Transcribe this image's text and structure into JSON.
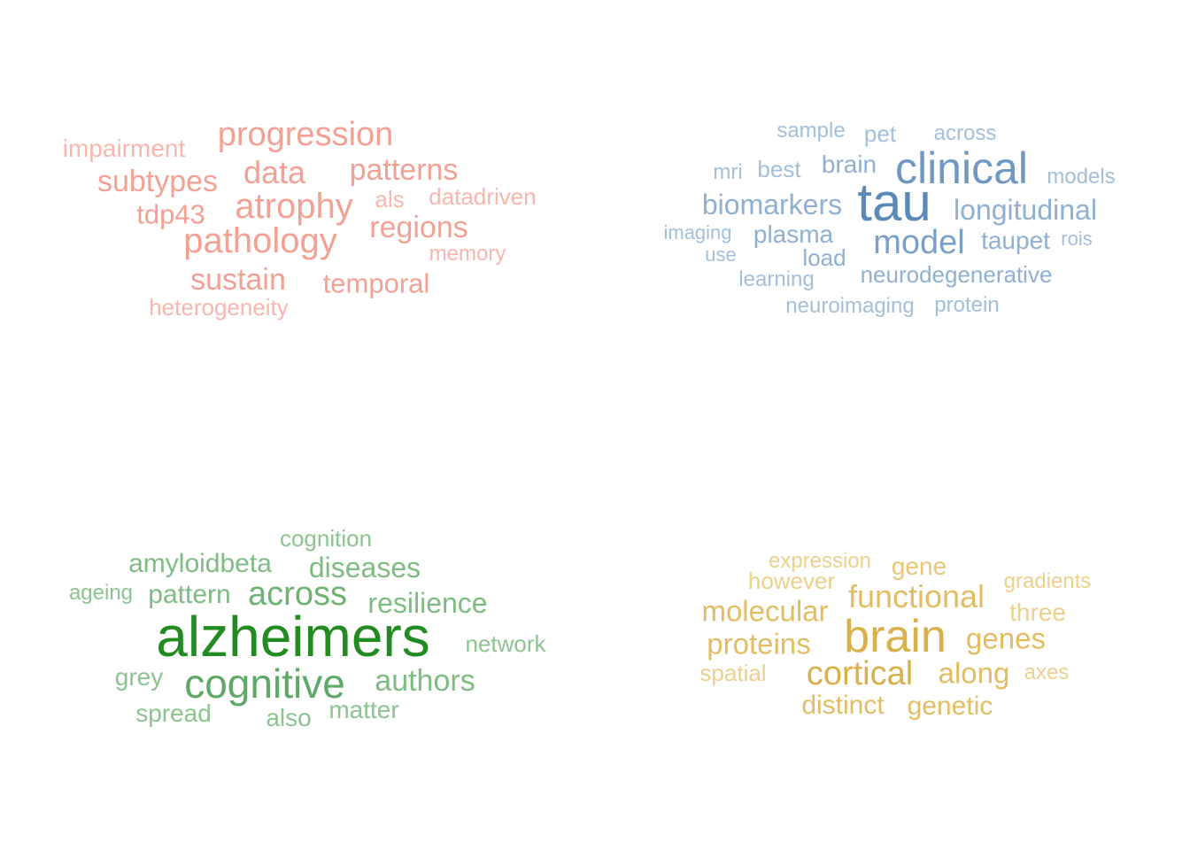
{
  "clouds": [
    {
      "words": [
        {
          "text": "progression",
          "color": "#f4a195",
          "weight": 0.7
        },
        {
          "text": "impairment",
          "color": "#f7b7ad",
          "weight": 0.35
        },
        {
          "text": "subtypes",
          "color": "#f4a195",
          "weight": 0.62
        },
        {
          "text": "data",
          "color": "#f4a195",
          "weight": 0.72
        },
        {
          "text": "patterns",
          "color": "#f4a195",
          "weight": 0.68
        },
        {
          "text": "tdp43",
          "color": "#f4a195",
          "weight": 0.56
        },
        {
          "text": "atrophy",
          "color": "#f4a195",
          "weight": 0.88
        },
        {
          "text": "als",
          "color": "#f7b7ad",
          "weight": 0.45
        },
        {
          "text": "datadriven",
          "color": "#f7b7ad",
          "weight": 0.45
        },
        {
          "text": "pathology",
          "color": "#f4a195",
          "weight": 0.92
        },
        {
          "text": "regions",
          "color": "#f4a195",
          "weight": 0.66
        },
        {
          "text": "memory",
          "color": "#f7b7ad",
          "weight": 0.4
        },
        {
          "text": "sustain",
          "color": "#f4a195",
          "weight": 0.66
        },
        {
          "text": "temporal",
          "color": "#f4a195",
          "weight": 0.62
        },
        {
          "text": "heterogeneity",
          "color": "#f7b7ad",
          "weight": 0.42
        }
      ]
    },
    {
      "words": [
        {
          "text": "sample",
          "color": "#a3bfd9",
          "weight": 0.38
        },
        {
          "text": "pet",
          "color": "#a3bfd9",
          "weight": 0.4
        },
        {
          "text": "across",
          "color": "#a3bfd9",
          "weight": 0.36
        },
        {
          "text": "mri",
          "color": "#a3bfd9",
          "weight": 0.34
        },
        {
          "text": "best",
          "color": "#a3bfd9",
          "weight": 0.42
        },
        {
          "text": "brain",
          "color": "#8fb0d0",
          "weight": 0.46
        },
        {
          "text": "clinical",
          "color": "#6f98c2",
          "weight": 0.9
        },
        {
          "text": "models",
          "color": "#a3bfd9",
          "weight": 0.34
        },
        {
          "text": "biomarkers",
          "color": "#8fb0d0",
          "weight": 0.58
        },
        {
          "text": "tau",
          "color": "#5b8ab9",
          "weight": 1.0
        },
        {
          "text": "longitudinal",
          "color": "#8fb0d0",
          "weight": 0.6
        },
        {
          "text": "imaging",
          "color": "#a3bfd9",
          "weight": 0.34
        },
        {
          "text": "plasma",
          "color": "#8fb0d0",
          "weight": 0.52
        },
        {
          "text": "model",
          "color": "#7aa0c8",
          "weight": 0.76
        },
        {
          "text": "taupet",
          "color": "#8fb0d0",
          "weight": 0.48
        },
        {
          "text": "rois",
          "color": "#a3bfd9",
          "weight": 0.34
        },
        {
          "text": "use",
          "color": "#a3bfd9",
          "weight": 0.34
        },
        {
          "text": "load",
          "color": "#8fb0d0",
          "weight": 0.46
        },
        {
          "text": "learning",
          "color": "#a3bfd9",
          "weight": 0.36
        },
        {
          "text": "neurodegenerative",
          "color": "#8fb0d0",
          "weight": 0.46
        },
        {
          "text": "neuroimaging",
          "color": "#a3bfd9",
          "weight": 0.38
        },
        {
          "text": "protein",
          "color": "#a3bfd9",
          "weight": 0.38
        }
      ]
    },
    {
      "words": [
        {
          "text": "cognition",
          "color": "#8cc490",
          "weight": 0.38
        },
        {
          "text": "amyloidbeta",
          "color": "#7fbc83",
          "weight": 0.5
        },
        {
          "text": "diseases",
          "color": "#7fbc83",
          "weight": 0.54
        },
        {
          "text": "ageing",
          "color": "#8cc490",
          "weight": 0.4
        },
        {
          "text": "pattern",
          "color": "#7fbc83",
          "weight": 0.52
        },
        {
          "text": "across",
          "color": "#6db373",
          "weight": 0.68
        },
        {
          "text": "resilience",
          "color": "#7fbc83",
          "weight": 0.56
        },
        {
          "text": "alzheimers",
          "color": "#228b22",
          "weight": 1.0
        },
        {
          "text": "network",
          "color": "#8cc490",
          "weight": 0.44
        },
        {
          "text": "grey",
          "color": "#8cc490",
          "weight": 0.46
        },
        {
          "text": "cognitive",
          "color": "#5ea965",
          "weight": 0.8
        },
        {
          "text": "authors",
          "color": "#7fbc83",
          "weight": 0.6
        },
        {
          "text": "spread",
          "color": "#8cc490",
          "weight": 0.46
        },
        {
          "text": "also",
          "color": "#8cc490",
          "weight": 0.46
        },
        {
          "text": "matter",
          "color": "#8cc490",
          "weight": 0.48
        }
      ]
    },
    {
      "words": [
        {
          "text": "expression",
          "color": "#ecd08c",
          "weight": 0.38
        },
        {
          "text": "gene",
          "color": "#e8c678",
          "weight": 0.44
        },
        {
          "text": "however",
          "color": "#ecd08c",
          "weight": 0.4
        },
        {
          "text": "gradients",
          "color": "#ecd08c",
          "weight": 0.36
        },
        {
          "text": "functional",
          "color": "#e3bd63",
          "weight": 0.64
        },
        {
          "text": "molecular",
          "color": "#e3bd63",
          "weight": 0.6
        },
        {
          "text": "three",
          "color": "#ecd08c",
          "weight": 0.46
        },
        {
          "text": "brain",
          "color": "#dab04b",
          "weight": 0.96
        },
        {
          "text": "proteins",
          "color": "#e3bd63",
          "weight": 0.6
        },
        {
          "text": "genes",
          "color": "#e3bd63",
          "weight": 0.6
        },
        {
          "text": "spatial",
          "color": "#ecd08c",
          "weight": 0.42
        },
        {
          "text": "cortical",
          "color": "#dab04b",
          "weight": 0.72
        },
        {
          "text": "along",
          "color": "#e3bd63",
          "weight": 0.62
        },
        {
          "text": "axes",
          "color": "#ecd08c",
          "weight": 0.38
        },
        {
          "text": "distinct",
          "color": "#e3bd63",
          "weight": 0.56
        },
        {
          "text": "genetic",
          "color": "#e3bd63",
          "weight": 0.56
        }
      ]
    }
  ]
}
